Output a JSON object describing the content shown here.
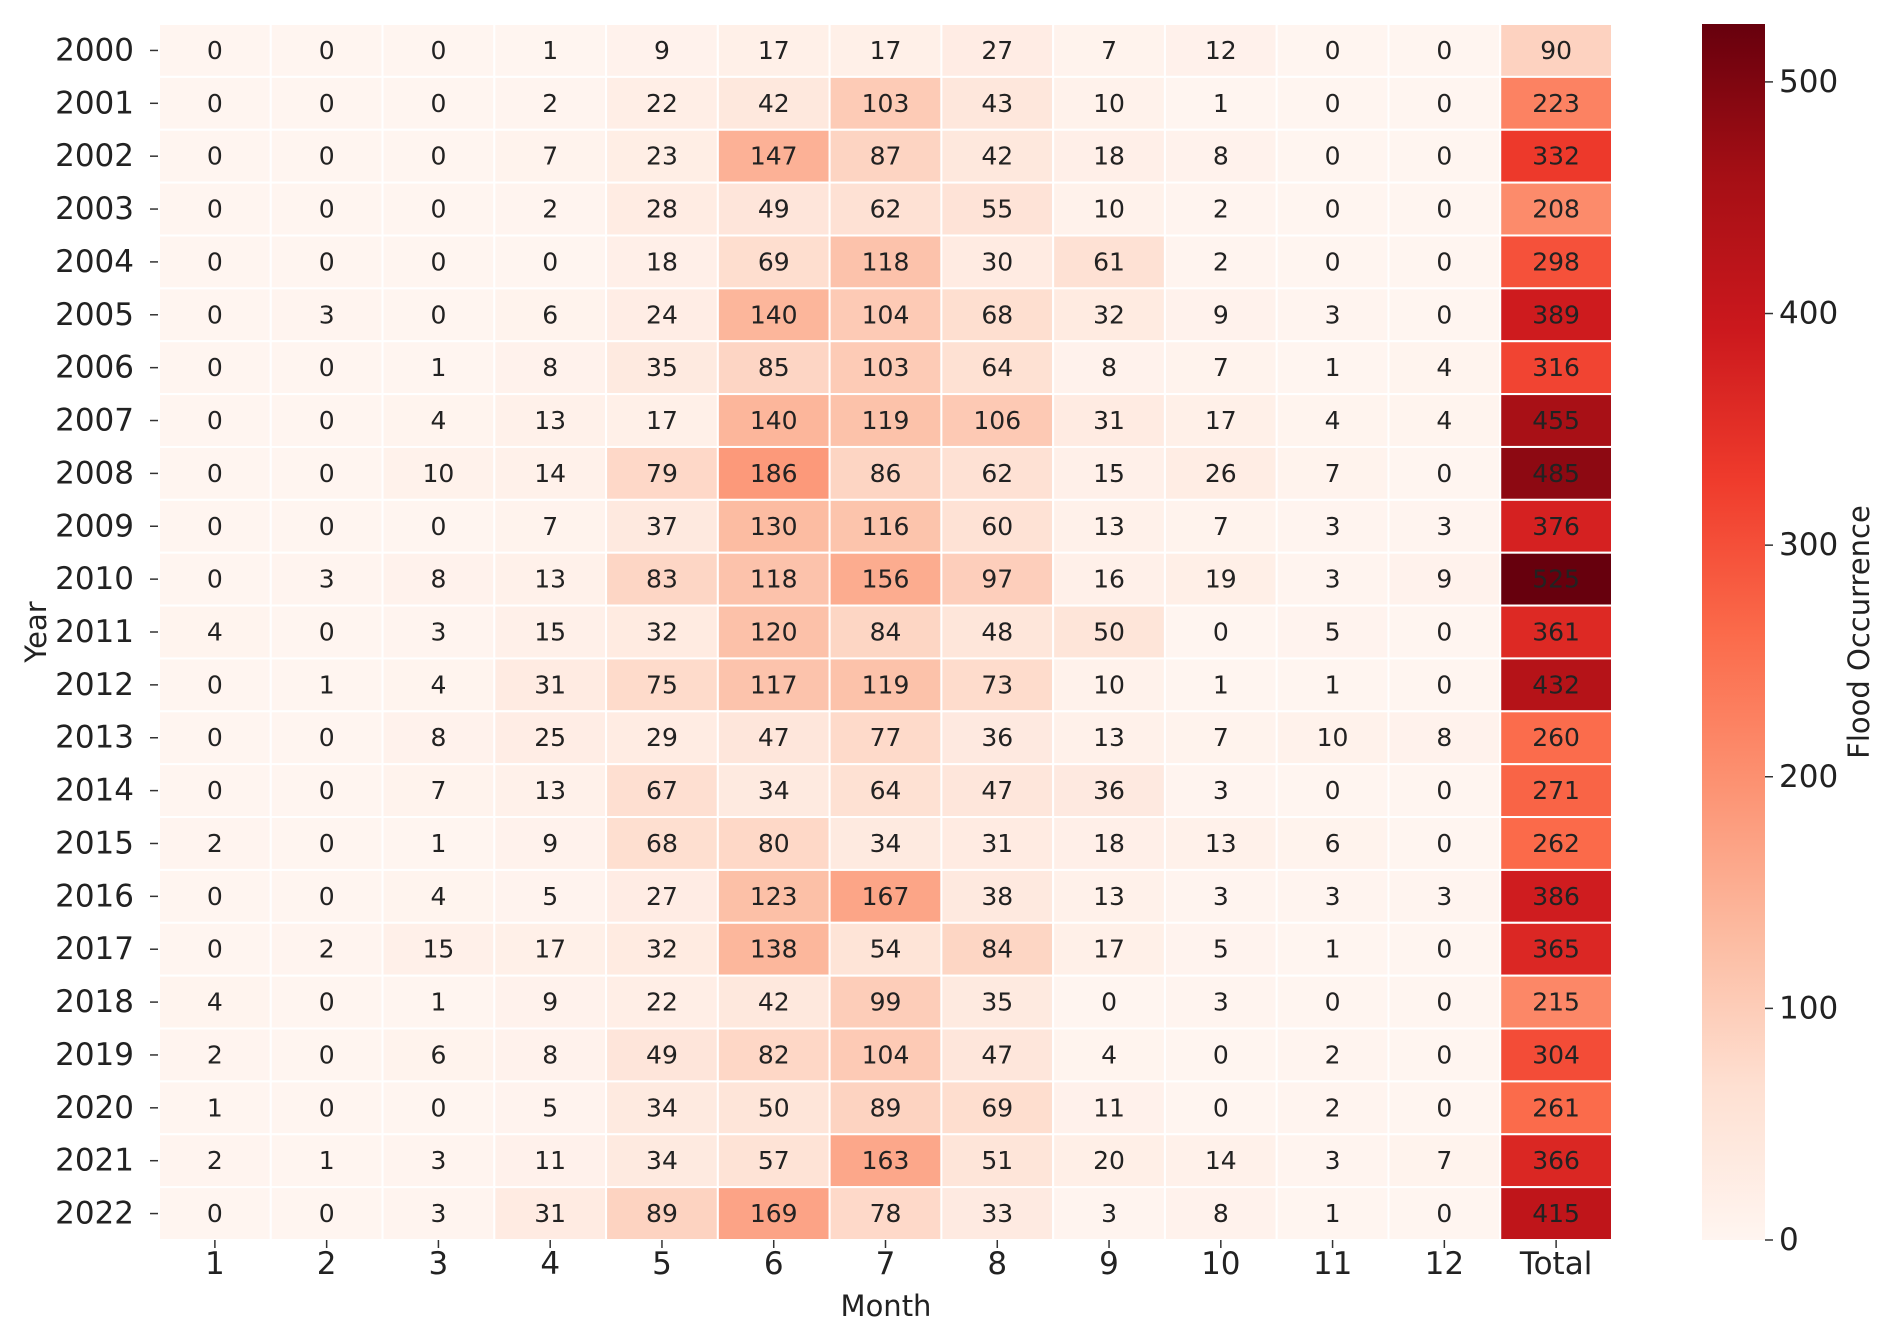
{
  "chart_data": {
    "type": "heatmap",
    "xlabel": "Month",
    "ylabel": "Year",
    "colorbar_label": "Flood Occurrence",
    "x_categories": [
      "1",
      "2",
      "3",
      "4",
      "5",
      "6",
      "7",
      "8",
      "9",
      "10",
      "11",
      "12",
      "Total"
    ],
    "y_categories": [
      "2000",
      "2001",
      "2002",
      "2003",
      "2004",
      "2005",
      "2006",
      "2007",
      "2008",
      "2009",
      "2010",
      "2011",
      "2012",
      "2013",
      "2014",
      "2015",
      "2016",
      "2017",
      "2018",
      "2019",
      "2020",
      "2021",
      "2022"
    ],
    "values": [
      [
        0,
        0,
        0,
        1,
        9,
        17,
        17,
        27,
        7,
        12,
        0,
        0,
        90
      ],
      [
        0,
        0,
        0,
        2,
        22,
        42,
        103,
        43,
        10,
        1,
        0,
        0,
        223
      ],
      [
        0,
        0,
        0,
        7,
        23,
        147,
        87,
        42,
        18,
        8,
        0,
        0,
        332
      ],
      [
        0,
        0,
        0,
        2,
        28,
        49,
        62,
        55,
        10,
        2,
        0,
        0,
        208
      ],
      [
        0,
        0,
        0,
        0,
        18,
        69,
        118,
        30,
        61,
        2,
        0,
        0,
        298
      ],
      [
        0,
        3,
        0,
        6,
        24,
        140,
        104,
        68,
        32,
        9,
        3,
        0,
        389
      ],
      [
        0,
        0,
        1,
        8,
        35,
        85,
        103,
        64,
        8,
        7,
        1,
        4,
        316
      ],
      [
        0,
        0,
        4,
        13,
        17,
        140,
        119,
        106,
        31,
        17,
        4,
        4,
        455
      ],
      [
        0,
        0,
        10,
        14,
        79,
        186,
        86,
        62,
        15,
        26,
        7,
        0,
        485
      ],
      [
        0,
        0,
        0,
        7,
        37,
        130,
        116,
        60,
        13,
        7,
        3,
        3,
        376
      ],
      [
        0,
        3,
        8,
        13,
        83,
        118,
        156,
        97,
        16,
        19,
        3,
        9,
        525
      ],
      [
        4,
        0,
        3,
        15,
        32,
        120,
        84,
        48,
        50,
        0,
        5,
        0,
        361
      ],
      [
        0,
        1,
        4,
        31,
        75,
        117,
        119,
        73,
        10,
        1,
        1,
        0,
        432
      ],
      [
        0,
        0,
        8,
        25,
        29,
        47,
        77,
        36,
        13,
        7,
        10,
        8,
        260
      ],
      [
        0,
        0,
        7,
        13,
        67,
        34,
        64,
        47,
        36,
        3,
        0,
        0,
        271
      ],
      [
        2,
        0,
        1,
        9,
        68,
        80,
        34,
        31,
        18,
        13,
        6,
        0,
        262
      ],
      [
        0,
        0,
        4,
        5,
        27,
        123,
        167,
        38,
        13,
        3,
        3,
        3,
        386
      ],
      [
        0,
        2,
        15,
        17,
        32,
        138,
        54,
        84,
        17,
        5,
        1,
        0,
        365
      ],
      [
        4,
        0,
        1,
        9,
        22,
        42,
        99,
        35,
        0,
        3,
        0,
        0,
        215
      ],
      [
        2,
        0,
        6,
        8,
        49,
        82,
        104,
        47,
        4,
        0,
        2,
        0,
        304
      ],
      [
        1,
        0,
        0,
        5,
        34,
        50,
        89,
        69,
        11,
        0,
        2,
        0,
        261
      ],
      [
        2,
        1,
        3,
        11,
        34,
        57,
        163,
        51,
        20,
        14,
        3,
        7,
        366
      ],
      [
        0,
        0,
        3,
        31,
        89,
        169,
        78,
        33,
        3,
        8,
        1,
        0,
        415
      ]
    ],
    "colormap": "Reds",
    "clim": [
      0,
      525
    ],
    "cticks": [
      0,
      100,
      200,
      300,
      400,
      500
    ]
  }
}
